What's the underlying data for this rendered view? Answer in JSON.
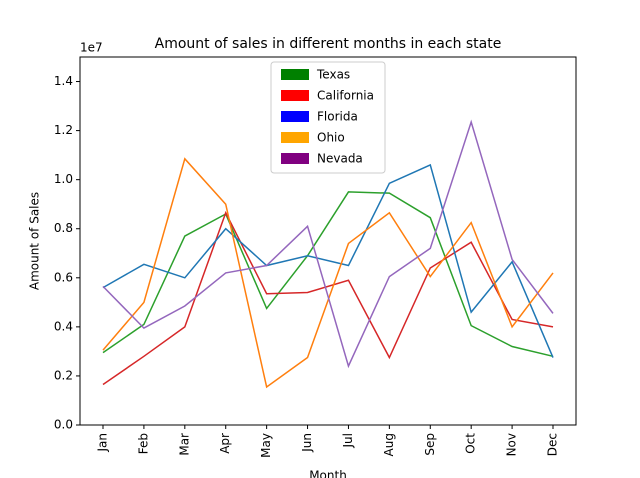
{
  "chart_data": {
    "type": "line",
    "title": "Amount of sales in different months in each state",
    "x_label": "Month",
    "y_label": "Amount of Sales",
    "y_offset_label": "1e7",
    "categories": [
      "Jan",
      "Feb",
      "Mar",
      "Apr",
      "May",
      "Jun",
      "Jul",
      "Aug",
      "Sep",
      "Oct",
      "Nov",
      "Dec"
    ],
    "ylim": [
      0,
      1.5
    ],
    "yticks": [
      {
        "value": 0,
        "label": "0.0"
      },
      0.2,
      0.4,
      0.6,
      0.8,
      {
        "value": 1,
        "label": "1.0"
      },
      1.2,
      1.4
    ],
    "legend_position": "upper center",
    "series": [
      {
        "name": "Texas",
        "color": "#2ca02c",
        "legend_color": "#008000",
        "values": [
          0.295,
          0.41,
          0.77,
          0.86,
          0.475,
          0.69,
          0.95,
          0.945,
          0.845,
          0.405,
          0.32,
          0.28
        ]
      },
      {
        "name": "California",
        "color": "#d62728",
        "legend_color": "#ff0000",
        "values": [
          0.165,
          0.28,
          0.4,
          0.865,
          0.535,
          0.54,
          0.59,
          0.275,
          0.64,
          0.745,
          0.43,
          0.4
        ]
      },
      {
        "name": "Florida",
        "color": "#1f77b4",
        "legend_color": "#0000ff",
        "values": [
          0.56,
          0.655,
          0.6,
          0.8,
          0.65,
          0.69,
          0.65,
          0.985,
          1.06,
          0.46,
          0.665,
          0.275
        ]
      },
      {
        "name": "Ohio",
        "color": "#ff7f0e",
        "legend_color": "#ffa500",
        "values": [
          0.305,
          0.5,
          1.085,
          0.9,
          0.155,
          0.275,
          0.74,
          0.865,
          0.605,
          0.825,
          0.4,
          0.62
        ]
      },
      {
        "name": "Nevada",
        "color": "#9467bd",
        "legend_color": "#800080",
        "values": [
          0.565,
          0.395,
          0.485,
          0.62,
          0.65,
          0.81,
          0.24,
          0.605,
          0.72,
          1.235,
          0.675,
          0.455
        ]
      }
    ]
  }
}
